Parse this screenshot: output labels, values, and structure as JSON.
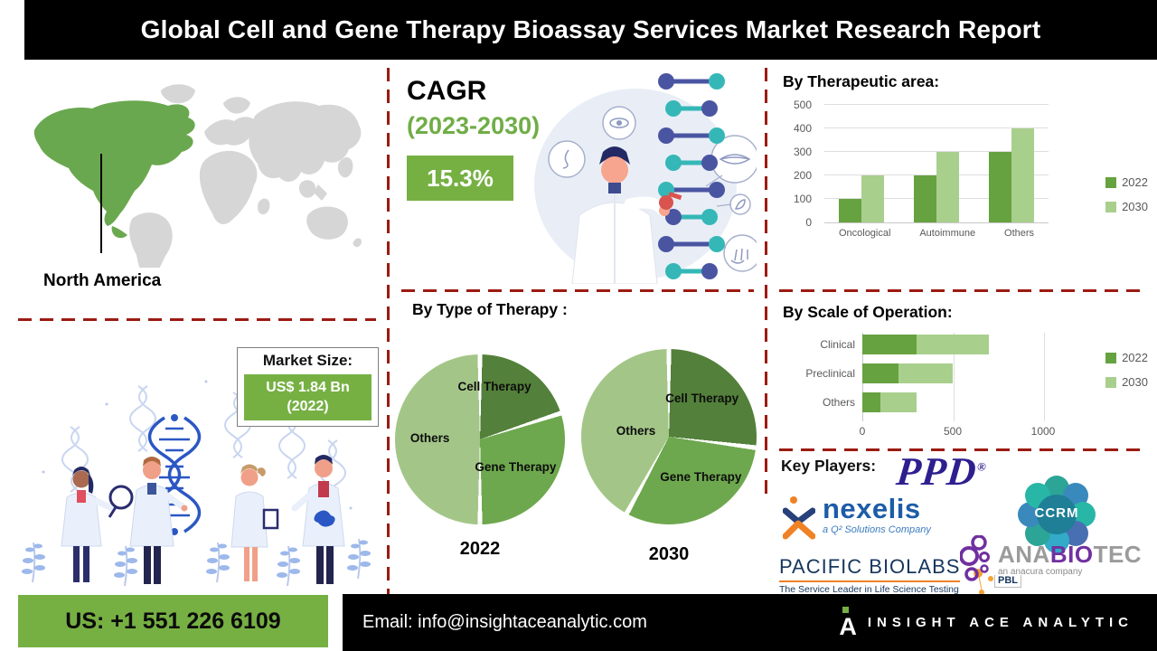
{
  "header": {
    "title": "Global Cell and Gene Therapy Bioassay Services Market Research Report"
  },
  "left": {
    "region_label": "North America",
    "market_size": {
      "label": "Market Size:",
      "value": "US$ 1.84 Bn",
      "year": "(2022)"
    }
  },
  "cagr": {
    "label": "CAGR",
    "period": "(2023-2030)",
    "value": "15.3%"
  },
  "sections": {
    "type_of_therapy": "By Type of Therapy :",
    "therapeutic_area": "By Therapeutic area:",
    "scale_of_operation": "By Scale of Operation:",
    "key_players": "Key Players:"
  },
  "colors": {
    "accent_green": "#76b043",
    "series_2022": "#66a23f",
    "series_2030": "#a9cf8d",
    "dash_red": "#9b1b12",
    "pie_cell": "#53803a",
    "pie_gene": "#6ea84e",
    "pie_others": "#a3c688"
  },
  "chart_data": [
    {
      "type": "bar",
      "title": "By Therapeutic area:",
      "categories": [
        "Oncological",
        "Autoimmune",
        "Others"
      ],
      "series": [
        {
          "name": "2022",
          "values": [
            100,
            200,
            300
          ],
          "color": "#66a23f"
        },
        {
          "name": "2030",
          "values": [
            200,
            300,
            400
          ],
          "color": "#a9cf8d"
        }
      ],
      "ylim": [
        0,
        500
      ],
      "yticks": [
        0,
        100,
        200,
        300,
        400,
        500
      ],
      "grid": true,
      "legend_position": "right"
    },
    {
      "type": "pie",
      "title": "By Type of Therapy :",
      "pies": [
        {
          "year": "2022",
          "slices": [
            {
              "label": "Cell Therapy",
              "value": 20,
              "color": "#53803a"
            },
            {
              "label": "Gene Therapy",
              "value": 30,
              "color": "#6ea84e"
            },
            {
              "label": "Others",
              "value": 50,
              "color": "#a3c688"
            }
          ]
        },
        {
          "year": "2030",
          "slices": [
            {
              "label": "Cell Therapy",
              "value": 27,
              "color": "#53803a"
            },
            {
              "label": "Gene Therapy",
              "value": 31,
              "color": "#6ea84e"
            },
            {
              "label": "Others",
              "value": 42,
              "color": "#a3c688"
            }
          ]
        }
      ]
    },
    {
      "type": "bar",
      "orientation": "horizontal-stacked",
      "title": "By Scale of Operation:",
      "categories": [
        "Clinical",
        "Preclinical",
        "Others"
      ],
      "series": [
        {
          "name": "2022",
          "values": [
            300,
            200,
            100
          ],
          "color": "#66a23f"
        },
        {
          "name": "2030",
          "values": [
            400,
            300,
            200
          ],
          "color": "#a9cf8d"
        }
      ],
      "xlim": [
        0,
        1250
      ],
      "xticks": [
        0,
        500,
        1000
      ],
      "grid": true,
      "legend_position": "right"
    }
  ],
  "key_players": {
    "ppd": {
      "text": "PPD",
      "reg": "®"
    },
    "nexelis": {
      "text": "nexelis",
      "tagline": "a Q² Solutions Company"
    },
    "ccrm": {
      "text": "CCRM"
    },
    "pacific": {
      "text": "PACIFIC BIOLABS",
      "tagline": "The Service Leader in Life Science Testing",
      "badge": "PBL"
    },
    "anabiotec": {
      "seg1": "ANA",
      "seg2": "BIO",
      "seg3": "TEC",
      "tagline": "an anacura company"
    }
  },
  "footer": {
    "phone": "US: +1 551 226 6109",
    "email_label": "Email:",
    "email": "info@insightaceanalytic.com",
    "brand": "INSIGHT ACE ANALYTIC"
  }
}
